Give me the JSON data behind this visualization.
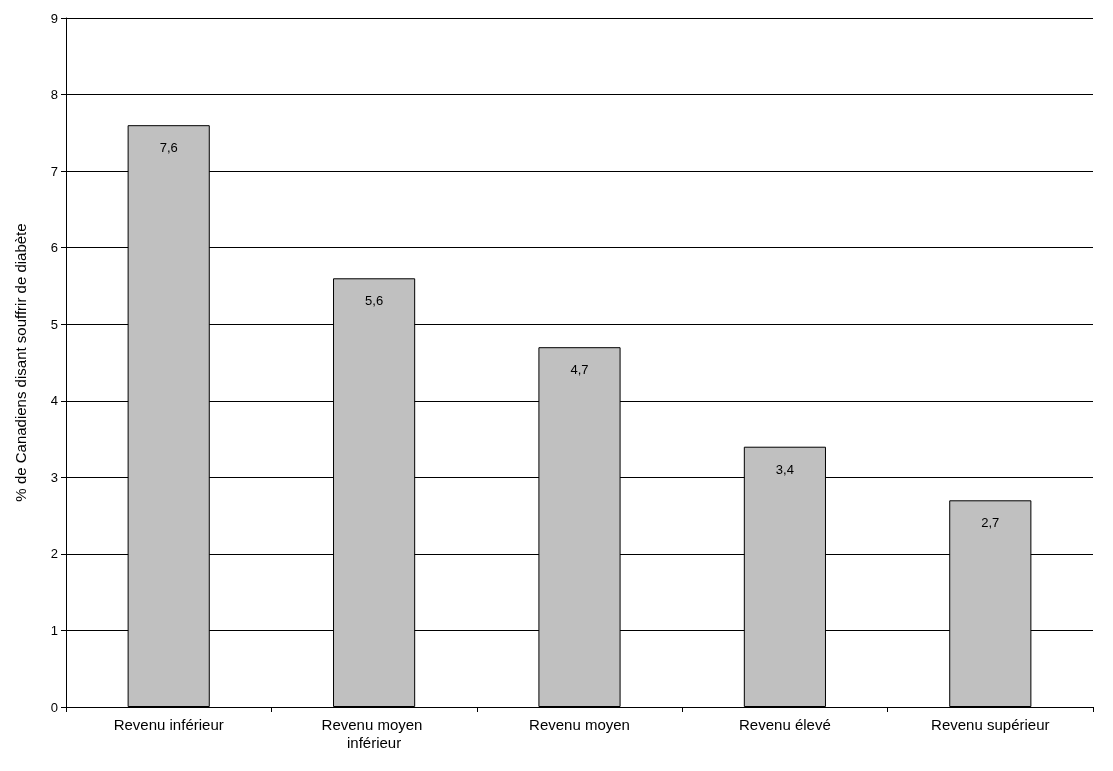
{
  "chart_data": {
    "type": "bar",
    "ylabel": "% de Canadiens disant souffrir de diabète",
    "categories": [
      "Revenu inférieur",
      "Revenu moyen inférieur",
      "Revenu moyen",
      "Revenu élevé",
      "Revenu supérieur"
    ],
    "values": [
      7.6,
      5.6,
      4.7,
      3.4,
      2.7
    ],
    "value_labels": [
      "7,6",
      "5,6",
      "4,7",
      "3,4",
      "2,7"
    ],
    "color": "#c0c0c0",
    "ylim": [
      0,
      9
    ],
    "yticks": [
      0,
      1,
      2,
      3,
      4,
      5,
      6,
      7,
      8,
      9
    ],
    "grid": "y",
    "legend": false
  }
}
